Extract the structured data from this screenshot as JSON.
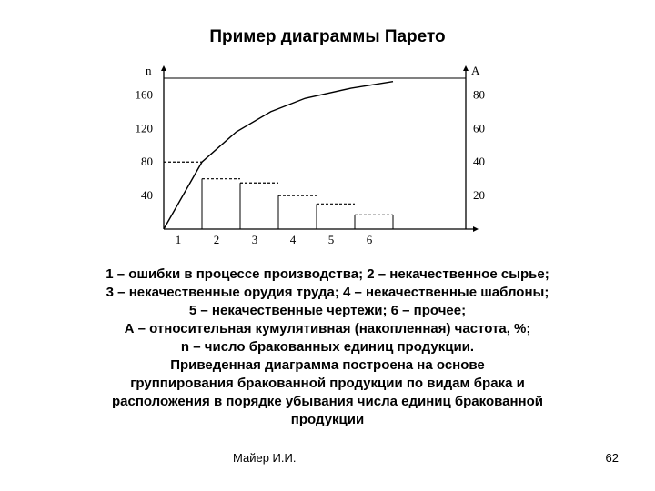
{
  "slide": {
    "title": "Пример диаграммы Парето",
    "caption_lines": [
      "1 – ошибки в процессе производства; 2 – некачественное сырье;",
      "3 – некачественные орудия труда; 4 – некачественные шаблоны;",
      "5 – некачественные чертежи; 6 – прочее;",
      "А – относительная кумулятивная (накопленная) частота, %;",
      "n – число бракованных единиц продукции.",
      "Приведенная диаграмма построена на основе",
      "группирования бракованной продукции по видам брака и",
      "расположения в порядке убывания числа единиц бракованной",
      "продукции"
    ],
    "author": "Майер И.И.",
    "page": "62"
  },
  "chart_data": {
    "type": "bar",
    "title": "",
    "categories": [
      "1",
      "2",
      "3",
      "4",
      "5",
      "6"
    ],
    "bar_values": [
      80,
      60,
      55,
      40,
      30,
      17
    ],
    "cumulative_percent": [
      0,
      40,
      58,
      70,
      78,
      84,
      88
    ],
    "cumulative_x": [
      0,
      1,
      1.9,
      2.8,
      3.7,
      4.9,
      6.0
    ],
    "ylabel_left": "n",
    "ylabel_right": "A",
    "yticks_left": [
      40,
      80,
      120,
      160
    ],
    "yticks_right": [
      20,
      40,
      60,
      80
    ],
    "ylim_left": [
      0,
      180
    ],
    "ylim_right": [
      0,
      90
    ],
    "bar_style": "dashed-top",
    "grid": false
  }
}
